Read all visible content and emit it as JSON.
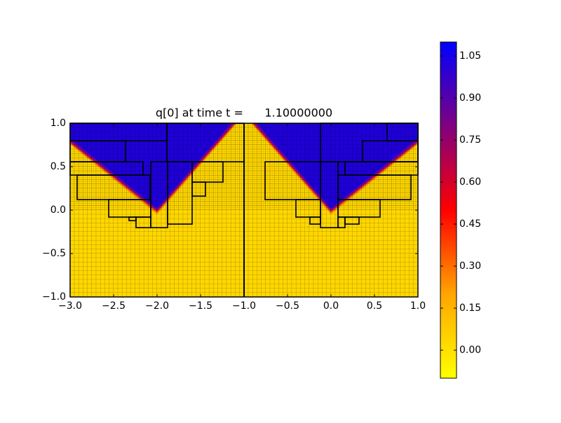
{
  "chart_data": {
    "type": "heatmap",
    "title": "q[0] at time t =      1.10000000",
    "xlim": [
      -3,
      1
    ],
    "ylim": [
      -1,
      1
    ],
    "xticks": [
      {
        "value": -3,
        "label": "−3.0"
      },
      {
        "value": -2.5,
        "label": "−2.5"
      },
      {
        "value": -2,
        "label": "−2.0"
      },
      {
        "value": -1.5,
        "label": "−1.5"
      },
      {
        "value": -1,
        "label": "−1.0"
      },
      {
        "value": -0.5,
        "label": "−0.5"
      },
      {
        "value": 0,
        "label": "0.0"
      },
      {
        "value": 0.5,
        "label": "0.5"
      },
      {
        "value": 1,
        "label": "1.0"
      }
    ],
    "yticks": [
      {
        "value": -1,
        "label": "−1.0"
      },
      {
        "value": -0.5,
        "label": "−0.5"
      },
      {
        "value": 0,
        "label": "0.0"
      },
      {
        "value": 0.5,
        "label": "0.5"
      },
      {
        "value": 1,
        "label": "1.0"
      }
    ],
    "colorbar": {
      "clim": [
        -0.1,
        1.1
      ],
      "colors": [
        "#ffff00",
        "#ffa500",
        "#ff0000",
        "#800080",
        "#0000ff"
      ],
      "ticks": [
        {
          "value": 0,
          "label": "0.00"
        },
        {
          "value": 0.15,
          "label": "0.15"
        },
        {
          "value": 0.3,
          "label": "0.30"
        },
        {
          "value": 0.45,
          "label": "0.45"
        },
        {
          "value": 0.6,
          "label": "0.60"
        },
        {
          "value": 0.75,
          "label": "0.75"
        },
        {
          "value": 0.9,
          "label": "0.90"
        },
        {
          "value": 1.05,
          "label": "1.05"
        }
      ]
    }
  }
}
